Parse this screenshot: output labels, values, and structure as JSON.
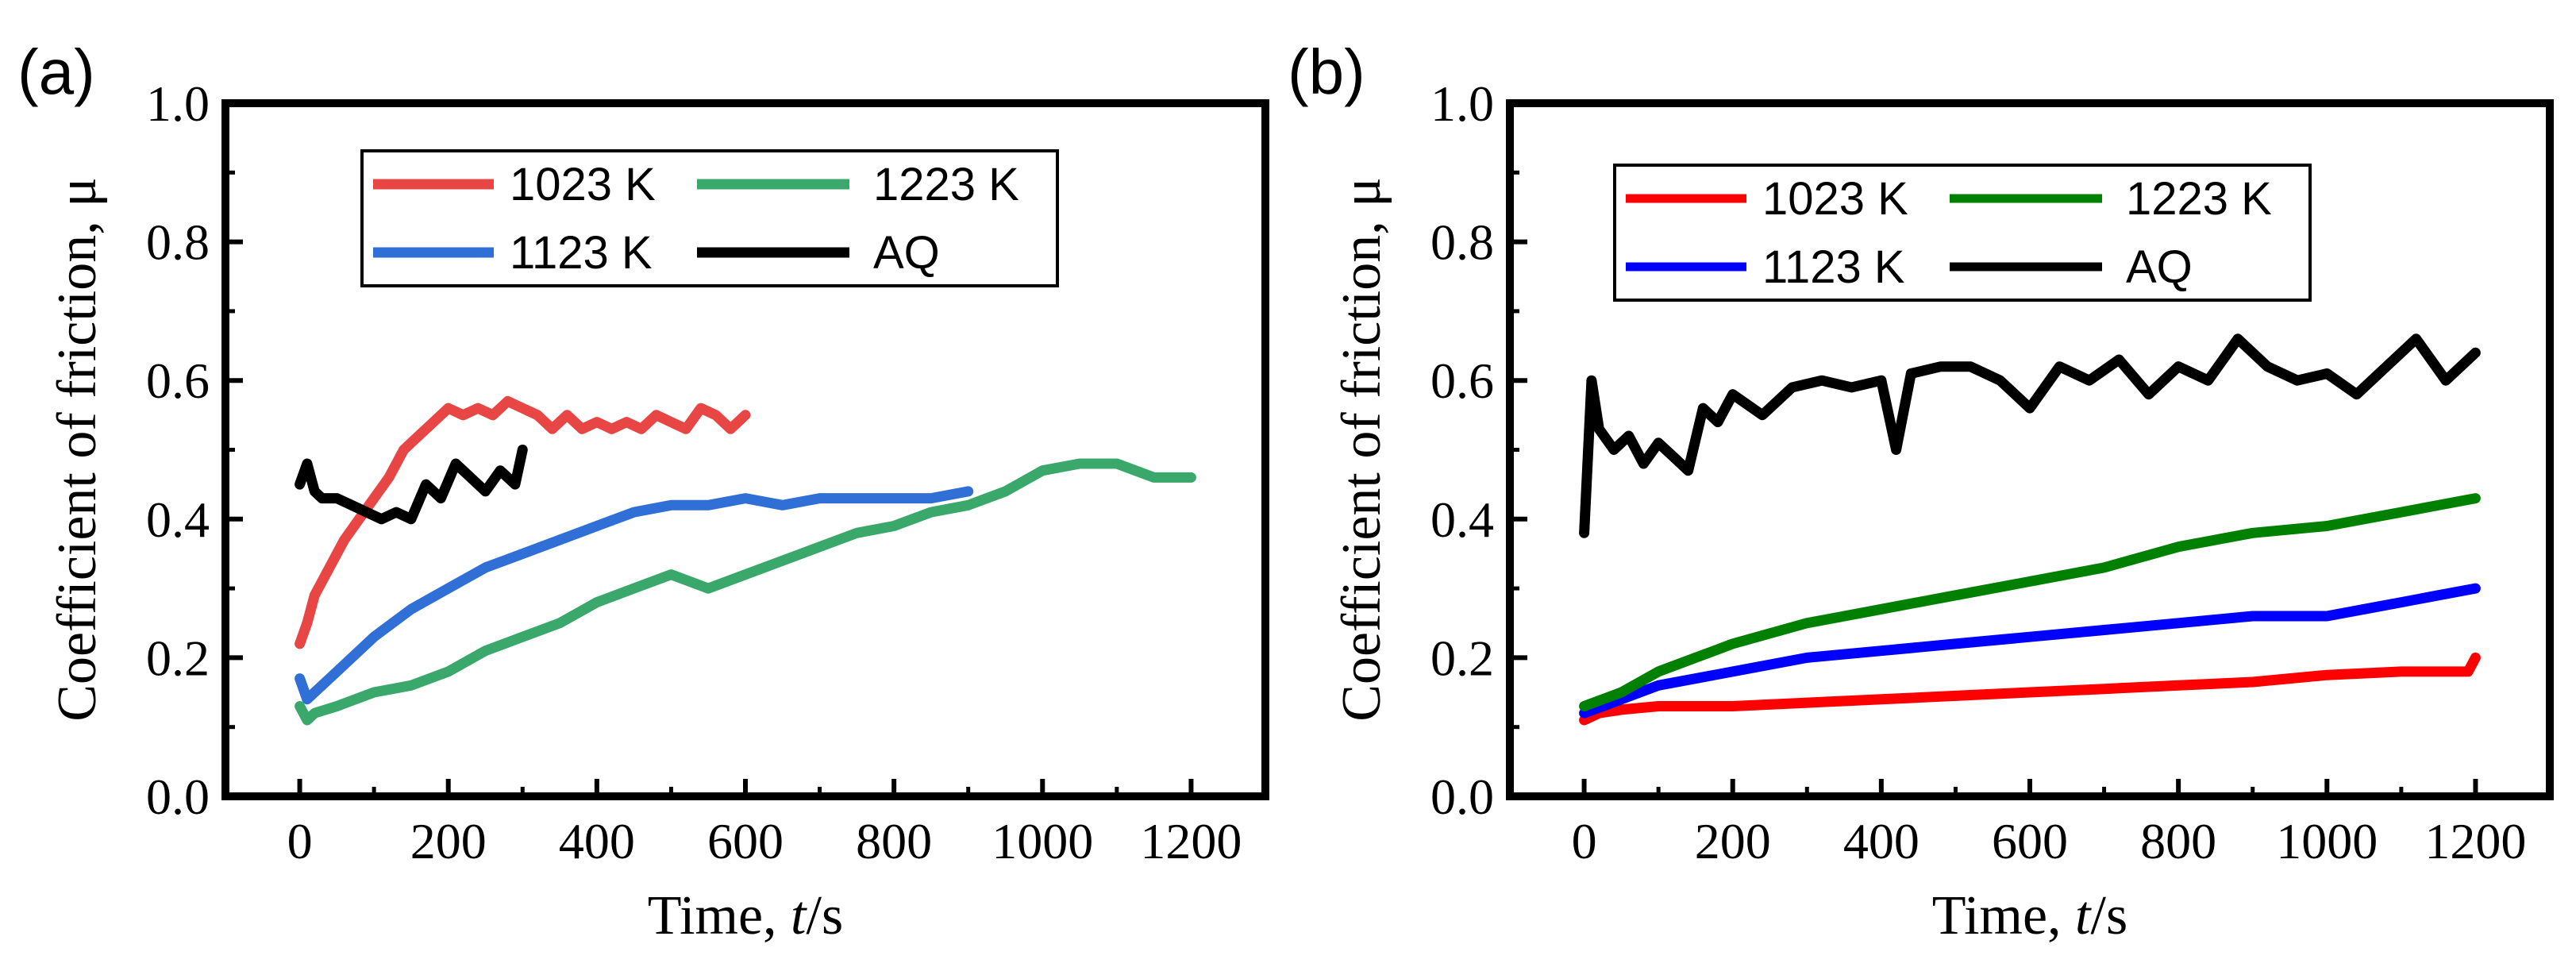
{
  "chart_data": [
    {
      "panel_label": "(a)",
      "type": "line",
      "xlabel_prefix": "Time, ",
      "xlabel_var": "t",
      "xlabel_suffix": "/s",
      "ylabel": "Coefficient of friction, μ",
      "xlim": [
        -100,
        1300
      ],
      "ylim": [
        0.0,
        1.0
      ],
      "xticks": [
        "0",
        "200",
        "400",
        "600",
        "800",
        "1000",
        "1200"
      ],
      "yticks": [
        "0.0",
        "0.2",
        "0.4",
        "0.6",
        "0.8",
        "1.0"
      ],
      "legend_position": "top-center",
      "series": [
        {
          "name": "1023 K",
          "color": "#e84545",
          "x": [
            0,
            10,
            20,
            40,
            60,
            80,
            100,
            120,
            140,
            160,
            180,
            200,
            220,
            240,
            260,
            280,
            300,
            320,
            340,
            360,
            380,
            400,
            420,
            440,
            460,
            480,
            500,
            520,
            540,
            560,
            580,
            600
          ],
          "y": [
            0.22,
            0.25,
            0.29,
            0.33,
            0.37,
            0.4,
            0.43,
            0.46,
            0.5,
            0.52,
            0.54,
            0.56,
            0.55,
            0.56,
            0.55,
            0.57,
            0.56,
            0.55,
            0.53,
            0.55,
            0.53,
            0.54,
            0.53,
            0.54,
            0.53,
            0.55,
            0.54,
            0.53,
            0.56,
            0.55,
            0.53,
            0.55
          ]
        },
        {
          "name": "1123 K",
          "color": "#2f6fd6",
          "x": [
            0,
            10,
            20,
            50,
            100,
            150,
            200,
            250,
            300,
            350,
            400,
            450,
            500,
            550,
            600,
            650,
            700,
            750,
            800,
            850,
            900
          ],
          "y": [
            0.17,
            0.14,
            0.15,
            0.18,
            0.23,
            0.27,
            0.3,
            0.33,
            0.35,
            0.37,
            0.39,
            0.41,
            0.42,
            0.42,
            0.43,
            0.42,
            0.43,
            0.43,
            0.43,
            0.43,
            0.44
          ]
        },
        {
          "name": "1223 K",
          "color": "#3aa86a",
          "x": [
            0,
            10,
            20,
            50,
            100,
            150,
            200,
            250,
            300,
            350,
            400,
            450,
            500,
            550,
            600,
            650,
            700,
            750,
            800,
            850,
            900,
            950,
            1000,
            1050,
            1100,
            1150,
            1200
          ],
          "y": [
            0.13,
            0.11,
            0.12,
            0.13,
            0.15,
            0.16,
            0.18,
            0.21,
            0.23,
            0.25,
            0.28,
            0.3,
            0.32,
            0.3,
            0.32,
            0.34,
            0.36,
            0.38,
            0.39,
            0.41,
            0.42,
            0.44,
            0.47,
            0.48,
            0.48,
            0.46,
            0.46
          ]
        },
        {
          "name": "AQ",
          "color": "#000000",
          "x": [
            0,
            10,
            20,
            30,
            50,
            70,
            90,
            110,
            130,
            150,
            170,
            190,
            210,
            230,
            250,
            270,
            290,
            300
          ],
          "y": [
            0.45,
            0.48,
            0.44,
            0.43,
            0.43,
            0.42,
            0.41,
            0.4,
            0.41,
            0.4,
            0.45,
            0.43,
            0.48,
            0.46,
            0.44,
            0.47,
            0.45,
            0.5
          ]
        }
      ]
    },
    {
      "panel_label": "(b)",
      "type": "line",
      "xlabel_prefix": "Time, ",
      "xlabel_var": "t",
      "xlabel_suffix": "/s",
      "ylabel": "Coefficient of friction, μ",
      "xlim": [
        -100,
        1300
      ],
      "ylim": [
        0.0,
        1.0
      ],
      "xticks": [
        "0",
        "200",
        "400",
        "600",
        "800",
        "1000",
        "1200"
      ],
      "yticks": [
        "0.0",
        "0.2",
        "0.4",
        "0.6",
        "0.8",
        "1.0"
      ],
      "legend_position": "top-center",
      "series": [
        {
          "name": "1023 K",
          "color": "#ff0000",
          "x": [
            0,
            20,
            50,
            100,
            200,
            300,
            400,
            500,
            600,
            700,
            800,
            900,
            1000,
            1100,
            1190,
            1200
          ],
          "y": [
            0.11,
            0.12,
            0.125,
            0.13,
            0.13,
            0.135,
            0.14,
            0.145,
            0.15,
            0.155,
            0.16,
            0.165,
            0.175,
            0.18,
            0.18,
            0.2
          ]
        },
        {
          "name": "1123 K",
          "color": "#0000ff",
          "x": [
            0,
            50,
            100,
            200,
            300,
            400,
            500,
            600,
            700,
            800,
            900,
            1000,
            1050,
            1100,
            1150,
            1200
          ],
          "y": [
            0.12,
            0.14,
            0.16,
            0.18,
            0.2,
            0.21,
            0.22,
            0.23,
            0.24,
            0.25,
            0.26,
            0.26,
            0.27,
            0.28,
            0.29,
            0.3
          ]
        },
        {
          "name": "1223 K",
          "color": "#008000",
          "x": [
            0,
            50,
            100,
            150,
            200,
            300,
            400,
            500,
            600,
            700,
            800,
            900,
            1000,
            1100,
            1200
          ],
          "y": [
            0.13,
            0.15,
            0.18,
            0.2,
            0.22,
            0.25,
            0.27,
            0.29,
            0.31,
            0.33,
            0.36,
            0.38,
            0.39,
            0.41,
            0.43
          ]
        },
        {
          "name": "AQ",
          "color": "#000000",
          "x": [
            0,
            10,
            20,
            40,
            60,
            80,
            100,
            120,
            140,
            160,
            180,
            200,
            240,
            280,
            320,
            360,
            400,
            420,
            440,
            480,
            520,
            560,
            600,
            640,
            680,
            720,
            760,
            800,
            840,
            880,
            920,
            960,
            1000,
            1040,
            1080,
            1120,
            1160,
            1200
          ],
          "y": [
            0.38,
            0.6,
            0.53,
            0.5,
            0.52,
            0.48,
            0.51,
            0.49,
            0.47,
            0.56,
            0.54,
            0.58,
            0.55,
            0.59,
            0.6,
            0.59,
            0.6,
            0.5,
            0.61,
            0.62,
            0.62,
            0.6,
            0.56,
            0.62,
            0.6,
            0.63,
            0.58,
            0.62,
            0.6,
            0.66,
            0.62,
            0.6,
            0.61,
            0.58,
            0.62,
            0.66,
            0.6,
            0.64
          ]
        }
      ]
    }
  ]
}
